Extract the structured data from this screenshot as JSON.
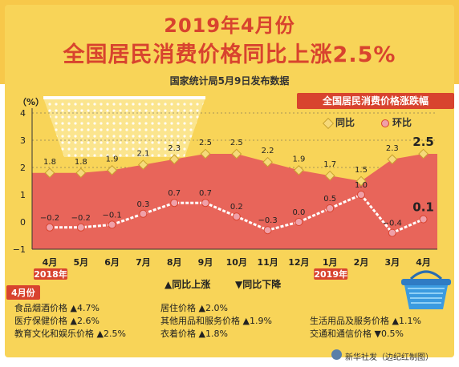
{
  "header": {
    "title_line1": "2019年4月份",
    "title_line2": "全国居民消费价格同比上涨2.5%",
    "source": "国家统计局5月9日发布数据"
  },
  "chart_data": {
    "type": "line",
    "ylabel": "（%）",
    "ylim": [
      -1,
      4
    ],
    "yticks": [
      "4",
      "3",
      "2",
      "1",
      "0",
      "−1"
    ],
    "categories": [
      "4月",
      "5月",
      "6月",
      "7月",
      "8月",
      "9月",
      "10月",
      "11月",
      "12月",
      "1月",
      "2月",
      "3月",
      "4月"
    ],
    "year_labels": [
      {
        "text": "2018年",
        "index": 0
      },
      {
        "text": "2019年",
        "index": 9
      }
    ],
    "legend_title": "全国居民消费价格涨跌幅",
    "series": [
      {
        "name": "同比",
        "values": [
          1.8,
          1.8,
          1.9,
          2.1,
          2.3,
          2.5,
          2.5,
          2.2,
          1.9,
          1.7,
          1.5,
          2.3,
          2.5
        ],
        "labels": [
          "1.8",
          "1.8",
          "1.9",
          "2.1",
          "2.3",
          "2.5",
          "2.5",
          "2.2",
          "1.9",
          "1.7",
          "1.5",
          "2.3",
          "2.5"
        ]
      },
      {
        "name": "环比",
        "values": [
          -0.2,
          -0.2,
          -0.1,
          0.3,
          0.7,
          0.7,
          0.2,
          -0.3,
          0.0,
          0.5,
          1.0,
          -0.4,
          0.1
        ],
        "labels": [
          "−0.2",
          "−0.2",
          "−0.1",
          "0.3",
          "0.7",
          "0.7",
          "0.2",
          "−0.3",
          "0.0",
          "0.5",
          "1.0",
          "−0.4",
          "0.1"
        ]
      }
    ],
    "colors": {
      "yoy_area": "#e8655a",
      "yoy_marker": "#f6d97a",
      "mom_line": "#ffffff",
      "mom_marker": "#f0a0a8",
      "grid": "#555555"
    }
  },
  "markers_legend": {
    "up": "▲同比上涨",
    "down": "▼同比下降"
  },
  "month_tag": "4月份",
  "categories": [
    {
      "name": "食品烟酒价格",
      "value": "▲4.7%"
    },
    {
      "name": "居住价格",
      "value": "▲2.0%"
    },
    {
      "name": "医疗保健价格",
      "value": "▲2.6%"
    },
    {
      "name": "其他用品和服务价格",
      "value": "▲1.9%"
    },
    {
      "name": "生活用品及服务价格",
      "value": "▲1.1%"
    },
    {
      "name": "教育文化和娱乐价格",
      "value": "▲2.5%"
    },
    {
      "name": "衣着价格",
      "value": "▲1.8%"
    },
    {
      "name": "交通和通信价格",
      "value": "▼0.5%"
    }
  ],
  "credit": "新华社发（边纪红制图）"
}
